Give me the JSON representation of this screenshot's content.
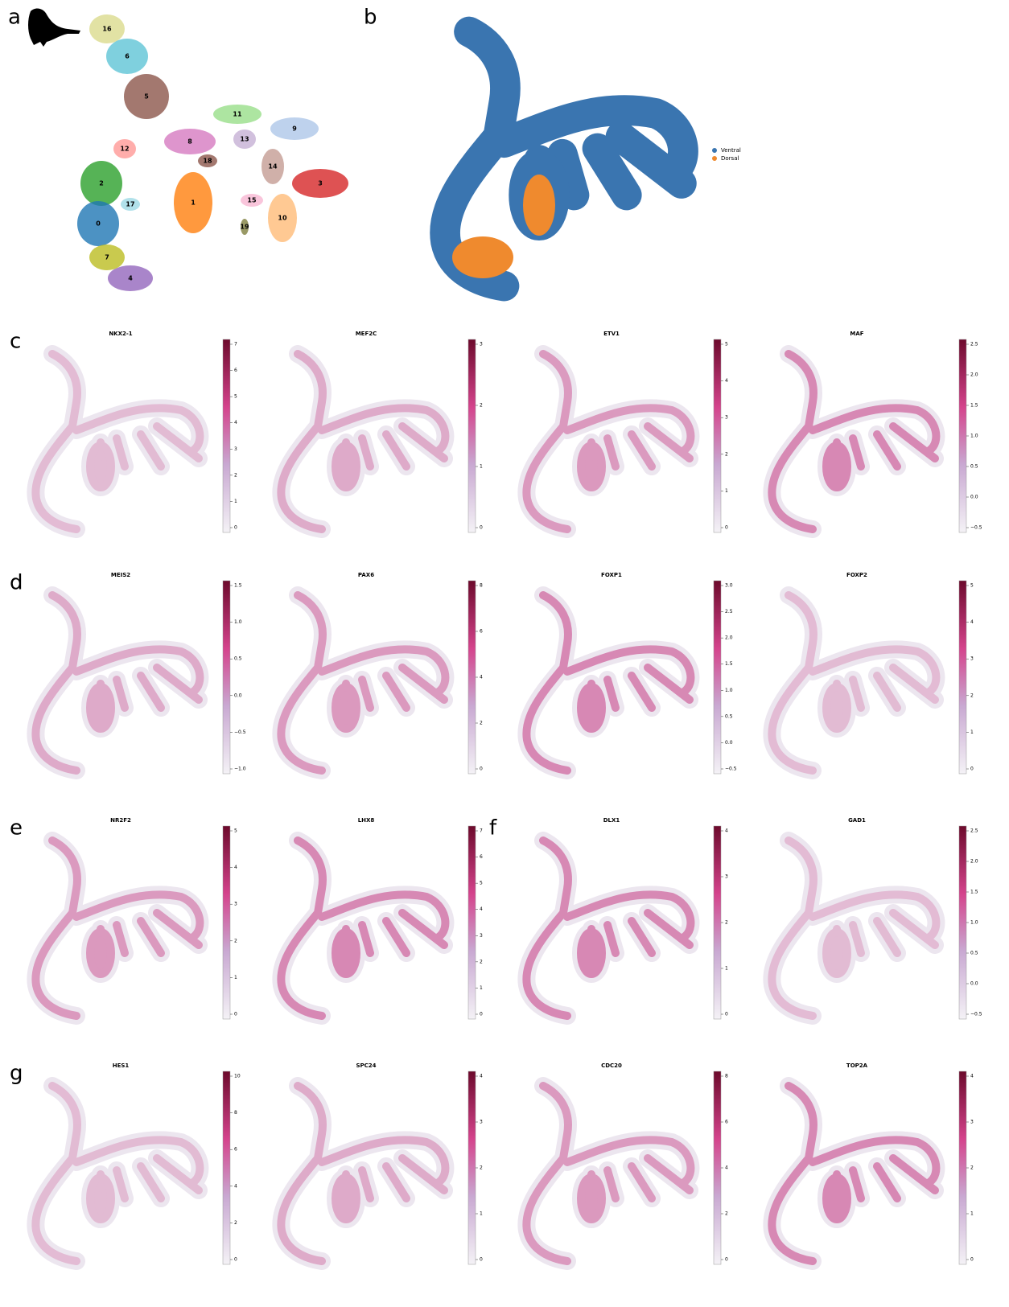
{
  "cluster_map": {
    "label": "a",
    "clusters": [
      {
        "label": "16",
        "color": "#dbdb8d"
      },
      {
        "label": "6",
        "color": "#5fc4d6"
      },
      {
        "label": "5",
        "color": "#8c564b"
      },
      {
        "label": "11",
        "color": "#98df8a"
      },
      {
        "label": "9",
        "color": "#aec7e8"
      },
      {
        "label": "8",
        "color": "#d67bc0"
      },
      {
        "label": "13",
        "color": "#c5b0d5"
      },
      {
        "label": "12",
        "color": "#ff9896"
      },
      {
        "label": "18",
        "color": "#8c564b"
      },
      {
        "label": "14",
        "color": "#c49c94"
      },
      {
        "label": "3",
        "color": "#d62728"
      },
      {
        "label": "2",
        "color": "#2ca02c"
      },
      {
        "label": "17",
        "color": "#9edae5"
      },
      {
        "label": "1",
        "color": "#ff7f0e"
      },
      {
        "label": "15",
        "color": "#f7b6d2"
      },
      {
        "label": "0",
        "color": "#1f77b4"
      },
      {
        "label": "10",
        "color": "#ffbb78"
      },
      {
        "label": "19",
        "color": "#7f7f3f"
      },
      {
        "label": "7",
        "color": "#bcbd22"
      },
      {
        "label": "4",
        "color": "#9467bd"
      }
    ]
  },
  "region_map": {
    "label": "b",
    "legend": [
      {
        "name": "Ventral",
        "color": "#3a75b0"
      },
      {
        "name": "Dorsal",
        "color": "#ef8a2e"
      }
    ]
  },
  "feature_groups": [
    {
      "label": "c",
      "features": [
        {
          "gene": "NKX2-1",
          "ticks": [
            0,
            1,
            2,
            3,
            4,
            5,
            6,
            7
          ]
        },
        {
          "gene": "MEF2C",
          "ticks": [
            0,
            1,
            2,
            3
          ]
        },
        {
          "gene": "ETV1",
          "ticks": [
            0,
            1,
            2,
            3,
            4,
            5
          ]
        },
        {
          "gene": "MAF",
          "ticks": [
            "−0.5",
            "0.0",
            "0.5",
            "1.0",
            "1.5",
            "2.0",
            "2.5"
          ]
        }
      ]
    },
    {
      "label": "d",
      "features": [
        {
          "gene": "MEIS2",
          "ticks": [
            "−1.0",
            "−0.5",
            "0.0",
            "0.5",
            "1.0",
            "1.5"
          ]
        },
        {
          "gene": "PAX6",
          "ticks": [
            0,
            2,
            4,
            6,
            8
          ]
        },
        {
          "gene": "FOXP1",
          "ticks": [
            "−0.5",
            "0.0",
            "0.5",
            "1.0",
            "1.5",
            "2.0",
            "2.5",
            "3.0"
          ]
        },
        {
          "gene": "FOXP2",
          "ticks": [
            0,
            1,
            2,
            3,
            4,
            5
          ]
        }
      ]
    },
    {
      "label": "e",
      "features": [
        {
          "gene": "NR2F2",
          "ticks": [
            0,
            1,
            2,
            3,
            4,
            5
          ]
        },
        {
          "gene": "LHX8",
          "ticks": [
            0,
            1,
            2,
            3,
            4,
            5,
            6,
            7
          ]
        }
      ]
    },
    {
      "label": "f",
      "features": [
        {
          "gene": "DLX1",
          "ticks": [
            0,
            1,
            2,
            3,
            4
          ]
        },
        {
          "gene": "GAD1",
          "ticks": [
            "−0.5",
            "0.0",
            "0.5",
            "1.0",
            "1.5",
            "2.0",
            "2.5"
          ]
        }
      ]
    },
    {
      "label": "g",
      "features": [
        {
          "gene": "HES1",
          "ticks": [
            0,
            2,
            4,
            6,
            8,
            10
          ]
        },
        {
          "gene": "SPC24",
          "ticks": [
            0,
            1,
            2,
            3,
            4
          ]
        },
        {
          "gene": "CDC20",
          "ticks": [
            0,
            2,
            4,
            6,
            8
          ]
        },
        {
          "gene": "TOP2A",
          "ticks": [
            0,
            1,
            2,
            3,
            4
          ]
        }
      ]
    }
  ]
}
